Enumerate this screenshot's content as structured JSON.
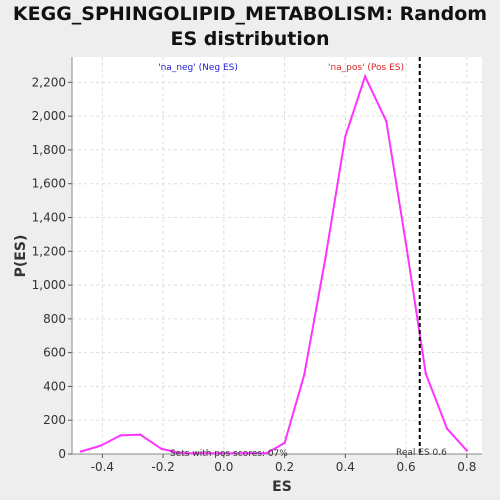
{
  "chart_data": {
    "type": "line",
    "title_line1": "KEGG_SPHINGOLIPID_METABOLISM: Random",
    "title_line2": "ES distribution",
    "xlabel": "ES",
    "ylabel": "P(ES)",
    "xlim": [
      -0.5,
      0.85
    ],
    "ylim": [
      0,
      2350
    ],
    "x_ticks": [
      -0.4,
      -0.2,
      0.0,
      0.2,
      0.4,
      0.6,
      0.8
    ],
    "x_tick_labels": [
      "-0.4",
      "-0.2",
      "0.0",
      "0.2",
      "0.4",
      "0.6",
      "0.8"
    ],
    "y_ticks": [
      0,
      200,
      400,
      600,
      800,
      1000,
      1200,
      1400,
      1600,
      1800,
      2000,
      2200
    ],
    "y_tick_labels": [
      "0",
      "200",
      "400",
      "600",
      "800",
      "1,000",
      "1,200",
      "1,400",
      "1,600",
      "1,800",
      "2,000",
      "2,200"
    ],
    "grid": true,
    "series": [
      {
        "color": "#ff33ff",
        "x": [
          -0.47,
          -0.405,
          -0.34,
          -0.275,
          -0.205,
          -0.14,
          0.14,
          0.2,
          0.265,
          0.335,
          0.4,
          0.465,
          0.535,
          0.6,
          0.665,
          0.735,
          0.8
        ],
        "y": [
          15,
          50,
          110,
          115,
          30,
          5,
          5,
          65,
          470,
          1165,
          1880,
          2235,
          1970,
          1240,
          475,
          150,
          20
        ]
      }
    ],
    "real_es": {
      "x": 0.645,
      "label": "Real ES 0.6",
      "color": "#000000"
    },
    "annotations": {
      "neg_label": "'na_neg' (Neg ES)",
      "neg_color": "#2222dd",
      "pos_label": "'na_pos' (Pos ES)",
      "pos_color": "#dd2222",
      "sets_label": "Sets with pos scores: 07%"
    }
  }
}
